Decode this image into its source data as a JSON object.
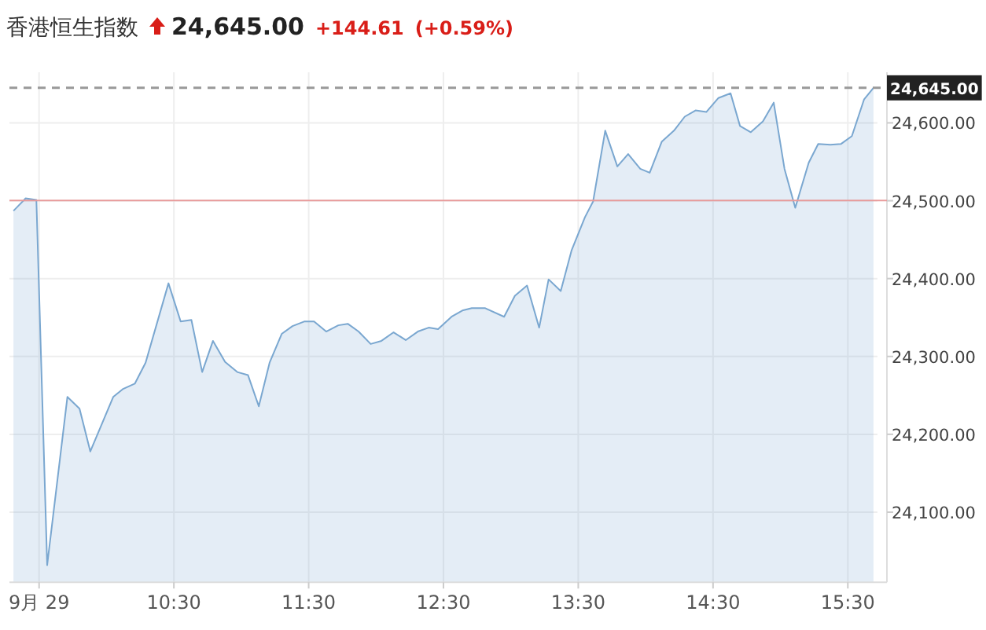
{
  "chart_data": {
    "type": "area",
    "title": "香港恒生指数",
    "annotations": [
      "24,645.00",
      "+144.61",
      "(+0.59%)"
    ],
    "x": [
      9.31,
      9.4,
      9.48,
      9.56,
      9.71,
      9.8,
      9.88,
      10.05,
      10.12,
      10.21,
      10.29,
      10.46,
      10.55,
      10.63,
      10.71,
      10.79,
      10.88,
      10.97,
      11.05,
      11.13,
      11.21,
      11.3,
      11.38,
      11.47,
      11.54,
      11.63,
      11.72,
      11.79,
      11.87,
      11.96,
      12.04,
      12.13,
      12.22,
      12.31,
      12.39,
      12.46,
      12.56,
      12.64,
      12.71,
      12.81,
      12.95,
      13.03,
      13.12,
      13.21,
      13.28,
      13.37,
      13.45,
      13.55,
      13.61,
      13.7,
      13.79,
      13.87,
      13.96,
      14.03,
      14.12,
      14.21,
      14.29,
      14.37,
      14.45,
      14.54,
      14.63,
      14.7,
      14.78,
      14.87,
      14.95,
      15.03,
      15.11,
      15.21,
      15.28,
      15.37,
      15.45,
      15.53,
      15.62,
      15.69
    ],
    "values": [
      24487,
      24503,
      24501,
      24032,
      24248,
      24233,
      24178,
      24248,
      24258,
      24265,
      24292,
      24394,
      24345,
      24347,
      24280,
      24320,
      24293,
      24280,
      24276,
      24236,
      24292,
      24329,
      24339,
      24345,
      24345,
      24332,
      24340,
      24342,
      24332,
      24316,
      24320,
      24331,
      24321,
      24332,
      24337,
      24335,
      24351,
      24359,
      24362,
      24362,
      24351,
      24378,
      24391,
      24337,
      24399,
      24384,
      24436,
      24479,
      24499,
      24590,
      24544,
      24560,
      24541,
      24536,
      24576,
      24590,
      24608,
      24616,
      24614,
      24632,
      24638,
      24596,
      24588,
      24602,
      24626,
      24541,
      24491,
      24549,
      24573,
      24572,
      24573,
      24583,
      24630,
      24645
    ],
    "color": "#7aa7d0",
    "xlim": [
      9.28,
      15.72
    ],
    "xticks": [
      {
        "value": 9.5,
        "label": "9月 29"
      },
      {
        "value": 10.5,
        "label": "10:30"
      },
      {
        "value": 11.5,
        "label": "11:30"
      },
      {
        "value": 12.5,
        "label": "12:30"
      },
      {
        "value": 13.5,
        "label": "13:30"
      },
      {
        "value": 14.5,
        "label": "14:30"
      },
      {
        "value": 15.5,
        "label": "15:30"
      }
    ],
    "ylim": [
      24010,
      24665
    ],
    "yticks": [
      {
        "value": 24100,
        "label": "24,100.00"
      },
      {
        "value": 24200,
        "label": "24,200.00"
      },
      {
        "value": 24300,
        "label": "24,300.00"
      },
      {
        "value": 24400,
        "label": "24,400.00"
      },
      {
        "value": 24500,
        "label": "24,500.00"
      },
      {
        "value": 24600,
        "label": "24,600.00"
      }
    ],
    "ref_lines": [
      {
        "axis": "y",
        "value": 24500.39,
        "color": "#e89a9a"
      },
      {
        "axis": "y",
        "value": 24645,
        "label": "24,645.00",
        "color": "#999999",
        "line_style": "dashed"
      }
    ],
    "grid": true
  }
}
